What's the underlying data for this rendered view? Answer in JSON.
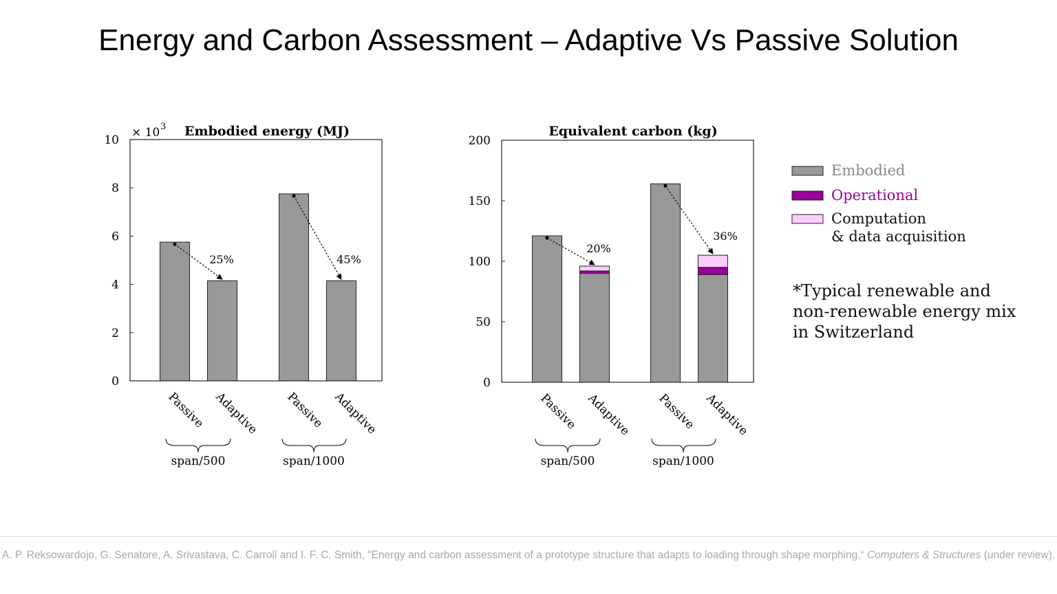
{
  "slide": {
    "title": "Energy and Carbon Assessment – Adaptive Vs Passive Solution",
    "note": "*Typical renewable and non-renewable energy mix in Switzerland",
    "citation_pre": "A. P. Reksowardojo, G. Senatore, A. Srivastava, C. Carroll and  I. F. C. Smith, \"Energy and carbon assessment of a prototype structure that adapts to loading through shape morphing,“ ",
    "citation_journal": "Computers & Structures",
    "citation_post": " (under review)."
  },
  "colors": {
    "embodied": "#999999",
    "operational": "#990099",
    "computation": "#ffccff",
    "embodied_text": "#888888",
    "operational_text": "#990099"
  },
  "chart_data": [
    {
      "type": "bar",
      "title": "Embodied energy (MJ)",
      "multiplier": "× 10",
      "multiplier_exp": "3",
      "categories": [
        "Passive",
        "Adaptive",
        "Passive",
        "Adaptive"
      ],
      "groups": [
        "span/500",
        "span/1000"
      ],
      "values": [
        5.75,
        4.15,
        7.75,
        4.15
      ],
      "ylim": [
        0,
        10
      ],
      "yticks": [
        "0",
        "2",
        "4",
        "6",
        "8",
        "10"
      ],
      "reductions": [
        "25%",
        "45%"
      ]
    },
    {
      "type": "bar",
      "title": "Equivalent carbon (kg)",
      "categories": [
        "Passive",
        "Adaptive",
        "Passive",
        "Adaptive"
      ],
      "groups": [
        "span/500",
        "span/1000"
      ],
      "series": [
        {
          "name": "Embodied",
          "values": [
            121,
            90,
            164,
            89
          ]
        },
        {
          "name": "Operational",
          "values": [
            0,
            2,
            0,
            6
          ]
        },
        {
          "name": "Computation & data acquisition",
          "values": [
            0,
            4,
            0,
            10
          ]
        }
      ],
      "ylim": [
        0,
        200
      ],
      "yticks": [
        "0",
        "50",
        "100",
        "150",
        "200"
      ],
      "reductions": [
        "20%",
        "36%"
      ]
    }
  ],
  "legend": [
    "Embodied",
    "Operational",
    "Computation",
    "& data acquisition"
  ]
}
